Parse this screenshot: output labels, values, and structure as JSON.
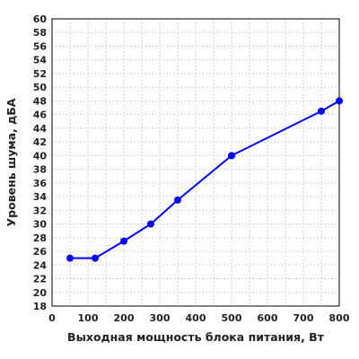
{
  "chart_data": {
    "type": "line",
    "xlabel": "Выходная мощность блока питания, Вт",
    "ylabel": "Уровень шума, дБА",
    "xlim": [
      0,
      800
    ],
    "ylim": [
      18,
      60
    ],
    "x_ticks": [
      0,
      100,
      200,
      300,
      400,
      500,
      600,
      700,
      800
    ],
    "y_ticks": [
      18,
      20,
      22,
      24,
      26,
      28,
      30,
      32,
      34,
      36,
      38,
      40,
      42,
      44,
      46,
      48,
      50,
      52,
      54,
      56,
      58,
      60
    ],
    "grid": true,
    "series": [
      {
        "color": "#0000ff",
        "x": [
          50,
          120,
          200,
          275,
          350,
          500,
          750,
          800
        ],
        "y": [
          25,
          25,
          27.5,
          30,
          33.5,
          40,
          46.5,
          48
        ]
      }
    ]
  }
}
